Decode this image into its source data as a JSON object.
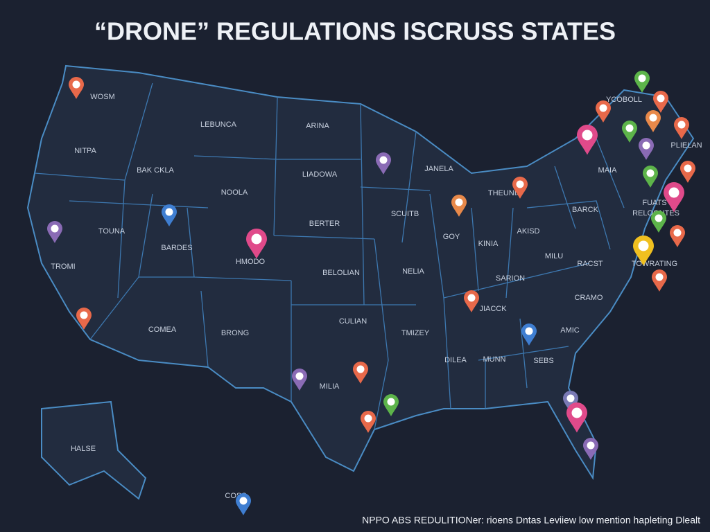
{
  "header": {
    "title": "“DRONE” REGULATIONS ISCRUSS STATES"
  },
  "map": {
    "labels": [
      "WOSM",
      "LEBUNCA",
      "ARINA",
      "NITPA",
      "BAK CKLA",
      "LIADOWA",
      "NOOLA",
      "TOUNA",
      "BARDES",
      "HMODO",
      "BERTER",
      "BELOLIAN",
      "TROMI",
      "COMEA",
      "BRONG",
      "CULIAN",
      "MILIA",
      "SCUITB",
      "GOY",
      "NELIA",
      "KINIA",
      "JANELA",
      "THEUNIA",
      "AKISD",
      "BARCK",
      "MAIA",
      "MILU",
      "RACST",
      "SARION",
      "JIACCK",
      "CRAMO",
      "AMIC",
      "DILEA",
      "MUNN",
      "SEBS",
      "TMIZEY",
      "HALSE",
      "YCOBOLL",
      "PLIELAN",
      "FUATS",
      "RELOGNTES",
      "TOWRATING",
      "COSS"
    ]
  },
  "footer": {
    "text": "NPPO ABS REDULITIONer: rioens Dntas Leviiew low mention hapleting Dlealt"
  }
}
